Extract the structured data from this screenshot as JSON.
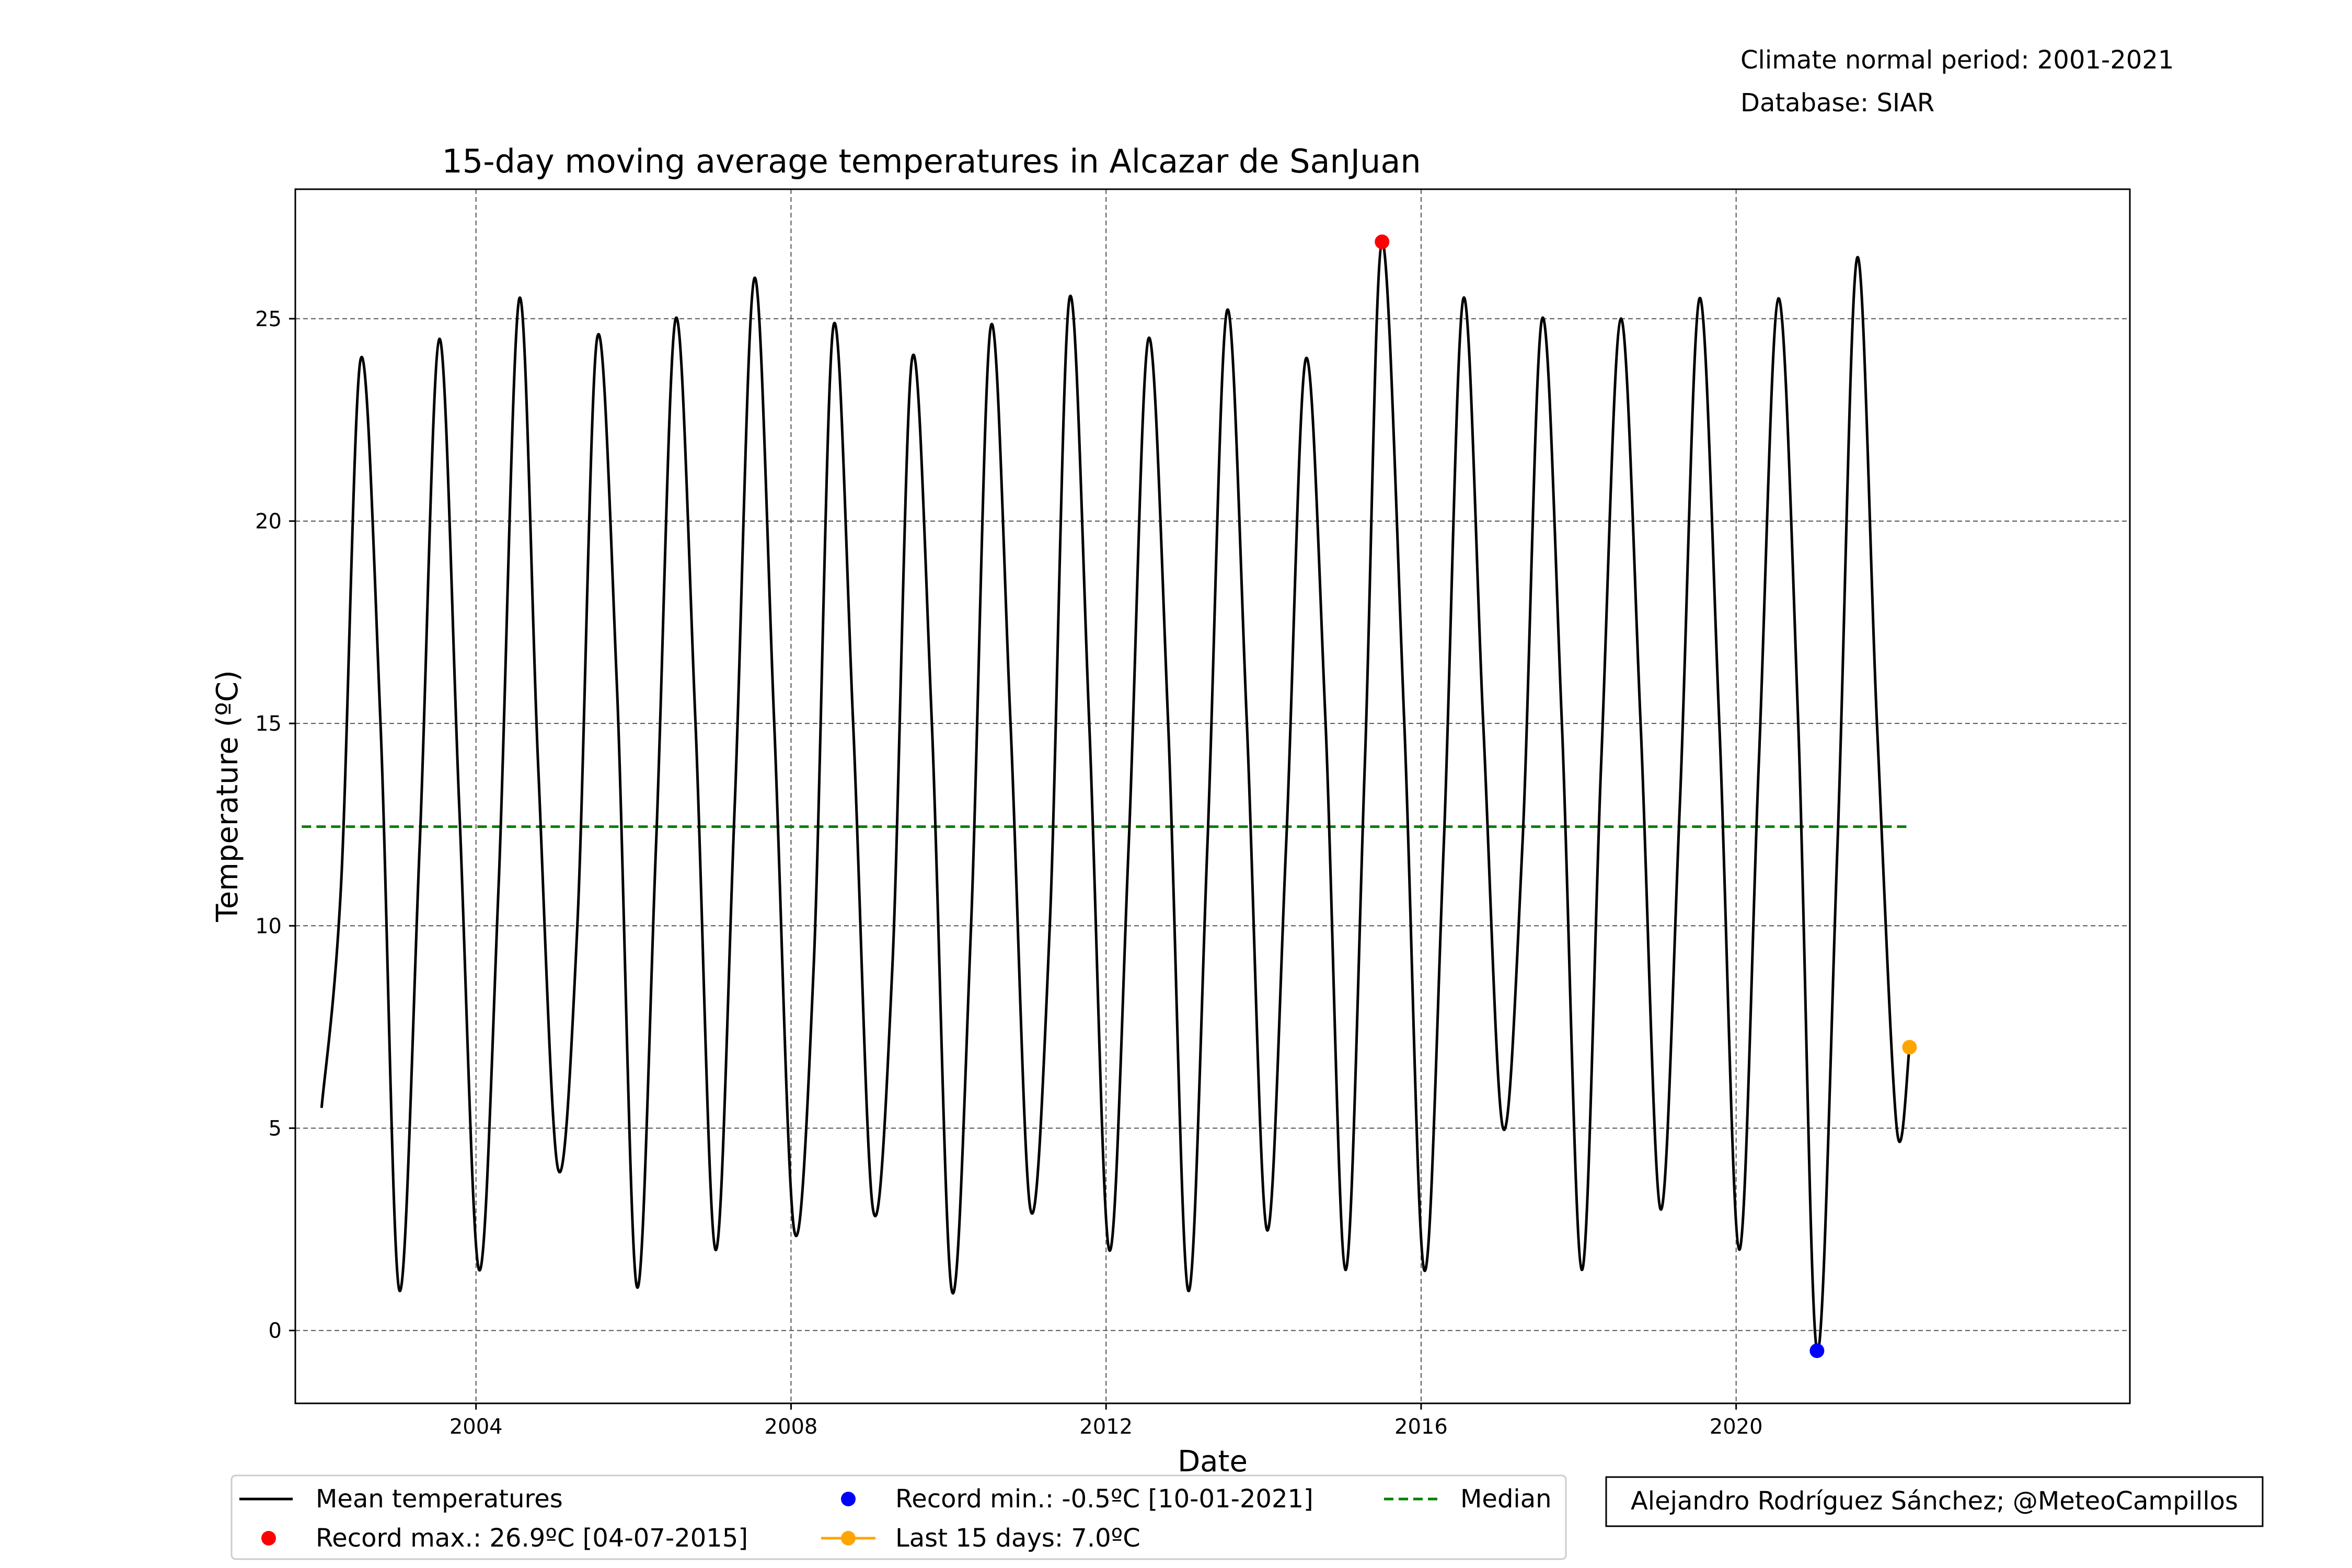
{
  "chart_data": {
    "type": "line",
    "title": "15-day moving average temperatures in Alcazar de SanJuan",
    "xlabel": "Date",
    "ylabel": "Temperature (ºC)",
    "info_lines": [
      "Climate normal period: 2001-2021",
      "Database: SIAR"
    ],
    "credit": "Alejandro Rodríguez Sánchez; @MeteoCampillos",
    "x_ticks": [
      "2004",
      "2008",
      "2012",
      "2016",
      "2020"
    ],
    "y_ticks": [
      0,
      5,
      10,
      15,
      20,
      25
    ],
    "xlim": [
      "2001-09-15",
      "2024-12-31"
    ],
    "ylim": [
      -1.8,
      28.2
    ],
    "grid": true,
    "legend_placement": "bottom-center",
    "colors": {
      "mean": "#000000",
      "record_max": "#ff0000",
      "record_min": "#0000ff",
      "last": "#ffa500",
      "median": "#008000"
    },
    "series": [
      {
        "name": "Mean temperatures",
        "style": "line",
        "x": [
          "2002-01-15",
          "2002-04-15",
          "2002-07-15",
          "2002-10-15",
          "2003-01-10",
          "2003-04-15",
          "2003-07-15",
          "2003-10-15",
          "2004-01-15",
          "2004-04-15",
          "2004-07-20",
          "2004-10-15",
          "2005-01-15",
          "2005-04-15",
          "2005-07-15",
          "2005-10-15",
          "2006-01-15",
          "2006-04-15",
          "2006-07-15",
          "2006-10-15",
          "2007-01-15",
          "2007-04-15",
          "2007-07-15",
          "2007-10-15",
          "2008-01-15",
          "2008-04-15",
          "2008-07-15",
          "2008-10-15",
          "2009-01-15",
          "2009-04-15",
          "2009-07-15",
          "2009-10-15",
          "2010-01-15",
          "2010-04-15",
          "2010-07-15",
          "2010-10-15",
          "2011-01-15",
          "2011-04-15",
          "2011-07-15",
          "2011-10-15",
          "2012-01-15",
          "2012-04-15",
          "2012-07-15",
          "2012-10-15",
          "2013-01-15",
          "2013-04-15",
          "2013-07-15",
          "2013-10-15",
          "2014-01-15",
          "2014-04-15",
          "2014-07-15",
          "2014-10-15",
          "2015-01-15",
          "2015-04-15",
          "2015-07-04",
          "2015-10-15",
          "2016-01-15",
          "2016-04-15",
          "2016-07-15",
          "2016-10-15",
          "2017-01-15",
          "2017-04-15",
          "2017-07-15",
          "2017-10-15",
          "2018-01-15",
          "2018-04-15",
          "2018-07-15",
          "2018-10-15",
          "2019-01-15",
          "2019-04-15",
          "2019-07-15",
          "2019-10-15",
          "2020-01-15",
          "2020-04-15",
          "2020-07-15",
          "2020-10-15",
          "2021-01-10",
          "2021-04-15",
          "2021-07-15",
          "2021-10-15",
          "2022-01-15",
          "2022-03-15"
        ],
        "values": [
          5.5,
          11,
          24,
          15,
          1.0,
          12,
          24.5,
          13,
          1.5,
          11,
          25.5,
          14,
          4.0,
          10,
          24.5,
          16,
          1.1,
          12,
          25,
          15,
          2,
          13,
          26,
          15,
          2.5,
          9,
          24.8,
          15,
          3,
          9,
          24,
          15,
          1.0,
          10,
          24.8,
          15,
          3,
          10,
          25.5,
          15,
          2,
          12,
          24.5,
          15,
          1.0,
          12,
          25.2,
          15,
          2.5,
          12,
          24,
          15,
          1.5,
          14,
          26.9,
          15,
          1.5,
          12,
          25.5,
          15,
          5,
          12,
          25,
          15,
          1.5,
          14,
          25,
          15,
          3,
          13,
          25.5,
          15,
          2,
          14,
          25.5,
          15,
          -0.5,
          12,
          26.5,
          15,
          5,
          7.0
        ]
      },
      {
        "name": "Record max.: 26.9ºC [04-07-2015]",
        "style": "point",
        "x": [
          "2015-07-04"
        ],
        "values": [
          26.9
        ]
      },
      {
        "name": "Record min.: -0.5ºC [10-01-2021]",
        "style": "point",
        "x": [
          "2021-01-10"
        ],
        "values": [
          -0.5
        ]
      },
      {
        "name": "Last 15 days: 7.0ºC",
        "style": "point",
        "x": [
          "2022-03-15"
        ],
        "values": [
          7.0
        ]
      },
      {
        "name": "Median",
        "style": "dashed",
        "x": [
          "2001-10-15",
          "2022-03-15"
        ],
        "values": [
          12.45,
          12.45
        ]
      }
    ]
  }
}
